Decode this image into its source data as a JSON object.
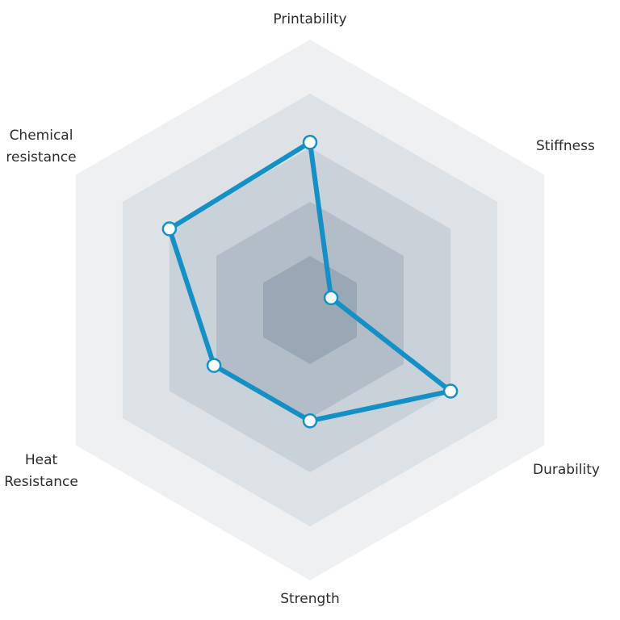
{
  "chart_data": {
    "type": "radar",
    "title": "",
    "axes": [
      {
        "label_lines": [
          "Printability"
        ]
      },
      {
        "label_lines": [
          "Stiffness"
        ]
      },
      {
        "label_lines": [
          "Durability"
        ]
      },
      {
        "label_lines": [
          "Strength"
        ]
      },
      {
        "label_lines": [
          "Heat",
          "Resistance"
        ]
      },
      {
        "label_lines": [
          "Chemical",
          "resistance"
        ]
      }
    ],
    "series": [
      {
        "values": [
          3.1,
          0.45,
          3.0,
          2.05,
          2.05,
          3.0
        ]
      }
    ],
    "scale": {
      "min": 0,
      "max": 5,
      "levels": 5
    },
    "grid": true,
    "legend": "none",
    "colors": {
      "series_line": "#1590c6",
      "marker_fill": "#ffffff",
      "rings": [
        "#9aa8b5",
        "#b2bdc8",
        "#c9d1d9",
        "#dde2e7",
        "#eef0f2"
      ]
    }
  }
}
